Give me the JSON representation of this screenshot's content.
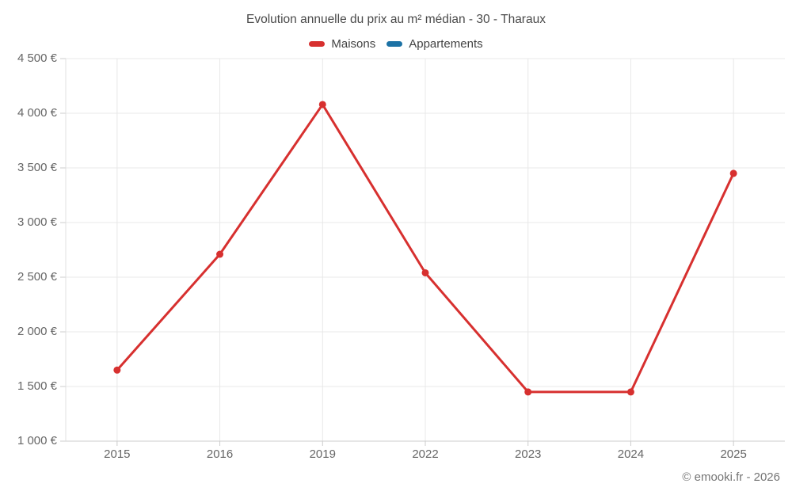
{
  "title": "Evolution annuelle du prix au m² médian - 30 - Tharaux",
  "copyright": "© emooki.fr - 2026",
  "colors": {
    "maisons": "#d7302f",
    "appartements": "#1c72a5",
    "gridline": "#e8e8e8",
    "axis_line": "#e0e0e0",
    "tick_line": "#cccccc",
    "title_text": "#4a4a4a",
    "axis_text": "#666666"
  },
  "chart_data": {
    "type": "line",
    "title": "Evolution annuelle du prix au m² médian - 30 - Tharaux",
    "categories": [
      "2015",
      "2016",
      "2019",
      "2022",
      "2023",
      "2024",
      "2025"
    ],
    "series": [
      {
        "name": "Maisons",
        "color": "#d7302f",
        "values": [
          1650,
          2710,
          4080,
          2540,
          1450,
          1450,
          3450
        ]
      },
      {
        "name": "Appartements",
        "color": "#1c72a5",
        "values": []
      }
    ],
    "xlabel": "",
    "ylabel": "",
    "ylim": [
      1000,
      4500
    ],
    "ytick_step": 500,
    "yticks": [
      {
        "value": 4500,
        "label": "4 500 €"
      },
      {
        "value": 4000,
        "label": "4 000 €"
      },
      {
        "value": 3500,
        "label": "3 500 €"
      },
      {
        "value": 3000,
        "label": "3 000 €"
      },
      {
        "value": 2500,
        "label": "2 500 €"
      },
      {
        "value": 2000,
        "label": "2 000 €"
      },
      {
        "value": 1500,
        "label": "1 500 €"
      },
      {
        "value": 1000,
        "label": "1 000 €"
      }
    ],
    "grid": true,
    "legend_position": "top"
  }
}
